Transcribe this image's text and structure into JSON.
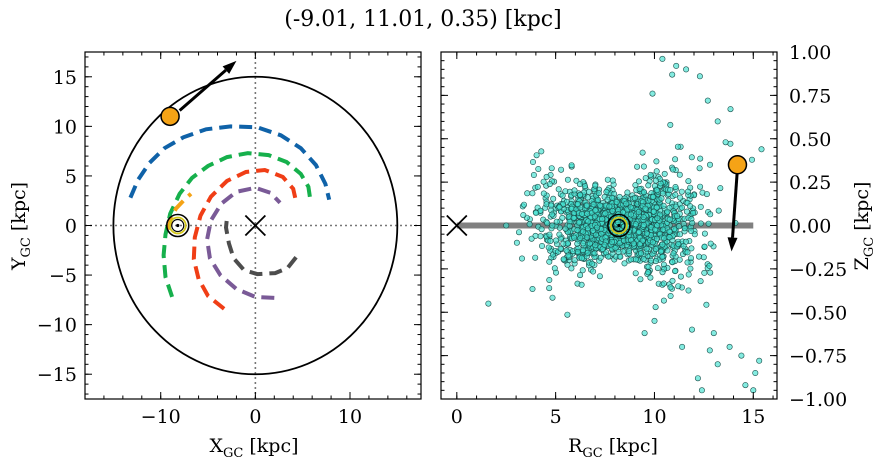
{
  "figure": {
    "title": "(-9.01, 11.01, 0.35) [kpc]"
  },
  "chart_data": [
    {
      "type": "scatter",
      "panel": "left",
      "xlabel": "X",
      "xlabel_sub": "GC",
      "xlabel_unit": " [kpc]",
      "ylabel": "Y",
      "ylabel_sub": "GC",
      "ylabel_unit": " [kpc]",
      "xlim": [
        -18,
        17.5
      ],
      "ylim": [
        -17.5,
        17.5
      ],
      "xticks": [
        -10,
        0,
        10
      ],
      "xtick_labels": [
        "−10",
        "0",
        "10"
      ],
      "yticks": [
        -15,
        -10,
        -5,
        0,
        5,
        10,
        15
      ],
      "ytick_labels": [
        "−15",
        "−10",
        "−5",
        "0",
        "5",
        "10",
        "15"
      ],
      "galactic_center": {
        "x": 0,
        "y": 0,
        "marker": "x"
      },
      "sun": {
        "x": -8.2,
        "y": 0.0
      },
      "object": {
        "x": -9.01,
        "y": 11.01,
        "color": "#f5a316"
      },
      "velocity_arrow": {
        "from": [
          -8.0,
          11.6
        ],
        "to": [
          -2.0,
          16.6
        ]
      },
      "disk_edge_radius": 15,
      "spiral_arms": [
        {
          "color": "#0f62a8",
          "points": [
            [
              -13.2,
              2.8
            ],
            [
              -12.4,
              4.6
            ],
            [
              -11.2,
              6.3
            ],
            [
              -9.6,
              7.8
            ],
            [
              -7.6,
              8.9
            ],
            [
              -5.2,
              9.7
            ],
            [
              -2.6,
              10.0
            ],
            [
              0.2,
              9.9
            ],
            [
              2.7,
              9.1
            ],
            [
              4.8,
              7.8
            ],
            [
              6.4,
              6.1
            ],
            [
              7.4,
              4.2
            ],
            [
              7.8,
              2.6
            ]
          ]
        },
        {
          "color": "#16b04c",
          "points": [
            [
              -8.8,
              -7.2
            ],
            [
              -9.5,
              -5.2
            ],
            [
              -9.7,
              -3.0
            ],
            [
              -9.5,
              -0.9
            ],
            [
              -9.0,
              1.2
            ],
            [
              -8.0,
              3.2
            ],
            [
              -6.7,
              4.8
            ],
            [
              -5.0,
              6.0
            ],
            [
              -3.0,
              6.9
            ],
            [
              -0.8,
              7.3
            ],
            [
              1.4,
              7.1
            ],
            [
              3.3,
              6.4
            ],
            [
              4.8,
              5.2
            ],
            [
              5.6,
              3.9
            ],
            [
              5.8,
              2.6
            ]
          ]
        },
        {
          "color": "#f03e16",
          "points": [
            [
              -3.3,
              -8.4
            ],
            [
              -5.0,
              -7.1
            ],
            [
              -6.0,
              -5.4
            ],
            [
              -6.5,
              -3.4
            ],
            [
              -6.4,
              -1.2
            ],
            [
              -5.8,
              1.0
            ],
            [
              -4.7,
              2.9
            ],
            [
              -3.0,
              4.5
            ],
            [
              -1.0,
              5.4
            ],
            [
              1.0,
              5.6
            ],
            [
              2.9,
              4.9
            ],
            [
              4.0,
              3.7
            ],
            [
              4.3,
              2.4
            ]
          ]
        },
        {
          "color": "#7a5a97",
          "points": [
            [
              2.0,
              -7.3
            ],
            [
              0.0,
              -7.2
            ],
            [
              -2.0,
              -6.4
            ],
            [
              -3.7,
              -5.0
            ],
            [
              -4.8,
              -3.3
            ],
            [
              -5.1,
              -1.4
            ],
            [
              -4.7,
              0.5
            ],
            [
              -3.6,
              2.2
            ],
            [
              -2.0,
              3.4
            ],
            [
              0.0,
              3.8
            ],
            [
              1.6,
              3.3
            ],
            [
              2.6,
              2.3
            ]
          ]
        },
        {
          "color": "#4d4d4d",
          "points": [
            [
              4.3,
              -3.2
            ],
            [
              3.4,
              -4.3
            ],
            [
              2.1,
              -4.8
            ],
            [
              0.2,
              -4.9
            ],
            [
              -1.2,
              -4.5
            ],
            [
              -2.3,
              -3.3
            ],
            [
              -2.8,
              -1.8
            ],
            [
              -3.1,
              -0.2
            ],
            [
              -3.0,
              0.8
            ]
          ]
        },
        {
          "color": "#f5a316",
          "points": [
            [
              -9.2,
              -0.4
            ],
            [
              -8.9,
              0.7
            ],
            [
              -8.4,
              1.7
            ],
            [
              -7.5,
              2.6
            ],
            [
              -6.8,
              3.2
            ]
          ]
        }
      ]
    },
    {
      "type": "scatter",
      "panel": "right",
      "xlabel": "R",
      "xlabel_sub": "GC",
      "xlabel_unit": " [kpc]",
      "ylabel": "Z",
      "ylabel_sub": "GC",
      "ylabel_unit": " [kpc]",
      "xlim": [
        -0.8,
        16.2
      ],
      "ylim": [
        -1.0,
        1.0
      ],
      "xticks": [
        0,
        5,
        10,
        15
      ],
      "xtick_labels": [
        "0",
        "5",
        "10",
        "15"
      ],
      "yticks": [
        -1.0,
        -0.75,
        -0.5,
        -0.25,
        0.0,
        0.25,
        0.5,
        0.75,
        1.0
      ],
      "ytick_labels": [
        "−1.00",
        "−0.75",
        "−0.50",
        "−0.25",
        "0.00",
        "0.25",
        "0.50",
        "0.75",
        "1.00"
      ],
      "galactic_center": {
        "x": 0,
        "y": 0,
        "marker": "x"
      },
      "sun": {
        "x": 8.2,
        "y": 0.0
      },
      "object": {
        "x": 14.2,
        "y": 0.35,
        "color": "#f5a316"
      },
      "velocity_arrow": {
        "from": [
          14.2,
          0.33
        ],
        "to": [
          13.9,
          -0.15
        ]
      },
      "disk_plane": {
        "x": [
          0,
          15
        ],
        "y": 0.0
      },
      "point_color": "#40e0d0",
      "point_cloud": {
        "count": 1750,
        "r_center": 8.3,
        "r_spread": 1.9,
        "z_spread_at_center": 0.07,
        "z_flare_per_kpc": 0.03,
        "outliers": [
          [
            1.6,
            -0.45
          ],
          [
            2.5,
            0.0
          ],
          [
            3.4,
            0.12
          ],
          [
            9.5,
            -0.62
          ],
          [
            10.0,
            -0.55
          ],
          [
            11.4,
            -0.7
          ],
          [
            12.2,
            -0.88
          ],
          [
            12.8,
            -0.72
          ],
          [
            13.2,
            -0.8
          ],
          [
            13.8,
            -0.7
          ],
          [
            14.4,
            -0.75
          ],
          [
            14.6,
            -0.92
          ],
          [
            15.0,
            -0.95
          ],
          [
            15.3,
            -0.78
          ],
          [
            11.9,
            -0.6
          ],
          [
            12.4,
            -0.95
          ],
          [
            10.4,
            0.96
          ],
          [
            11.6,
            0.9
          ],
          [
            12.3,
            0.86
          ],
          [
            10.9,
            0.87
          ],
          [
            11.1,
            0.92
          ],
          [
            9.9,
            0.76
          ],
          [
            10.8,
            0.58
          ],
          [
            13.2,
            0.6
          ],
          [
            13.6,
            0.48
          ],
          [
            9.4,
            0.42
          ],
          [
            12.7,
            0.72
          ],
          [
            15.1,
            -0.85
          ],
          [
            13.0,
            -0.62
          ],
          [
            11.2,
            -0.35
          ]
        ]
      }
    }
  ]
}
